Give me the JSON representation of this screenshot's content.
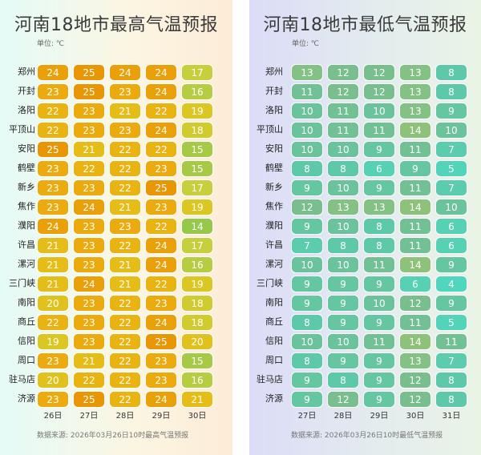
{
  "left_title": "河南18地市最高气温预报",
  "right_title": "河南18地市最低气温预报",
  "unit_label": "单位: ℃",
  "left_source": "数据来源: 2026年03月26日10时最高气温预报",
  "right_source": "数据来源: 2026年03月26日10时最低气温预报",
  "chart_data": [
    {
      "type": "heatmap",
      "title": "河南18地市最高气温预报",
      "unit": "℃",
      "days": [
        "26日",
        "27日",
        "28日",
        "29日",
        "30日"
      ],
      "cities": [
        "郑州",
        "开封",
        "洛阳",
        "平顶山",
        "安阳",
        "鹤壁",
        "新乡",
        "焦作",
        "濮阳",
        "许昌",
        "漯河",
        "三门峡",
        "南阳",
        "商丘",
        "信阳",
        "周口",
        "驻马店",
        "济源"
      ],
      "values": [
        [
          24,
          25,
          24,
          24,
          17
        ],
        [
          23,
          25,
          23,
          24,
          16
        ],
        [
          22,
          23,
          21,
          22,
          19
        ],
        [
          22,
          23,
          23,
          24,
          18
        ],
        [
          25,
          21,
          22,
          22,
          15
        ],
        [
          23,
          22,
          22,
          23,
          15
        ],
        [
          23,
          23,
          22,
          25,
          17
        ],
        [
          23,
          24,
          21,
          23,
          19
        ],
        [
          24,
          23,
          23,
          22,
          14
        ],
        [
          21,
          23,
          22,
          24,
          17
        ],
        [
          21,
          23,
          21,
          24,
          16
        ],
        [
          21,
          24,
          21,
          22,
          19
        ],
        [
          20,
          23,
          22,
          23,
          18
        ],
        [
          22,
          23,
          22,
          24,
          18
        ],
        [
          19,
          23,
          22,
          25,
          20
        ],
        [
          23,
          21,
          22,
          23,
          15
        ],
        [
          20,
          22,
          22,
          23,
          16
        ],
        [
          23,
          25,
          22,
          24,
          21
        ]
      ]
    },
    {
      "type": "heatmap",
      "title": "河南18地市最低气温预报",
      "unit": "℃",
      "days": [
        "27日",
        "28日",
        "29日",
        "30日",
        "31日"
      ],
      "cities": [
        "郑州",
        "开封",
        "洛阳",
        "平顶山",
        "安阳",
        "鹤壁",
        "新乡",
        "焦作",
        "濮阳",
        "许昌",
        "漯河",
        "三门峡",
        "南阳",
        "商丘",
        "信阳",
        "周口",
        "驻马店",
        "济源"
      ],
      "values": [
        [
          13,
          12,
          12,
          13,
          8
        ],
        [
          11,
          12,
          12,
          13,
          8
        ],
        [
          10,
          11,
          10,
          13,
          9
        ],
        [
          10,
          11,
          11,
          14,
          10
        ],
        [
          10,
          10,
          9,
          11,
          7
        ],
        [
          8,
          8,
          6,
          9,
          5
        ],
        [
          9,
          10,
          9,
          11,
          7
        ],
        [
          12,
          13,
          13,
          14,
          10
        ],
        [
          9,
          10,
          8,
          11,
          6
        ],
        [
          7,
          8,
          8,
          11,
          6
        ],
        [
          10,
          10,
          11,
          14,
          9
        ],
        [
          9,
          9,
          9,
          6,
          4
        ],
        [
          9,
          9,
          10,
          12,
          9
        ],
        [
          8,
          9,
          9,
          11,
          5
        ],
        [
          10,
          10,
          11,
          14,
          11
        ],
        [
          8,
          9,
          9,
          13,
          7
        ],
        [
          9,
          8,
          9,
          12,
          8
        ],
        [
          9,
          12,
          9,
          12,
          8
        ]
      ]
    }
  ]
}
